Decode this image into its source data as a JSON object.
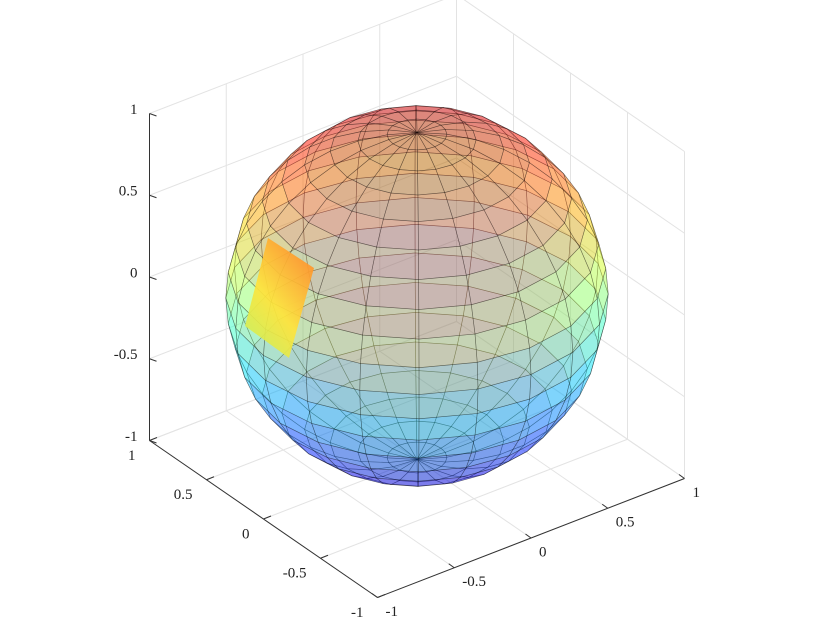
{
  "chart_data": {
    "type": "sphere",
    "xlim": [
      -1,
      1
    ],
    "ylim": [
      -1,
      1
    ],
    "zlim": [
      -1,
      1
    ],
    "xticks": [
      -1,
      -0.5,
      0,
      0.5,
      1
    ],
    "yticks": [
      -1,
      -0.5,
      0,
      0.5,
      1
    ],
    "zticks": [
      -1,
      -0.5,
      0,
      0.5,
      1
    ],
    "grid": true,
    "colormap": "jet"
  }
}
